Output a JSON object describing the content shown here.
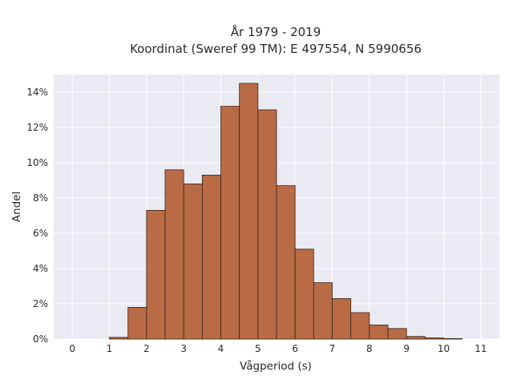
{
  "chart_data": {
    "type": "bar",
    "title": "År 1979 - 2019",
    "subtitle": "Koordinat (Sweref 99 TM): E 497554, N 5990656",
    "xlabel": "Vågperiod (s)",
    "ylabel": "Andel",
    "xlim": [
      -0.5,
      11.5
    ],
    "ylim": [
      0,
      15
    ],
    "x_ticks": [
      0,
      1,
      2,
      3,
      4,
      5,
      6,
      7,
      8,
      9,
      10,
      11
    ],
    "y_ticks": [
      0,
      2,
      4,
      6,
      8,
      10,
      12,
      14
    ],
    "y_tick_suffix": "%",
    "bin_width": 0.5,
    "bins": [
      {
        "start": 1.0,
        "value": 0.1
      },
      {
        "start": 1.5,
        "value": 1.8
      },
      {
        "start": 2.0,
        "value": 7.3
      },
      {
        "start": 2.5,
        "value": 9.6
      },
      {
        "start": 3.0,
        "value": 8.8
      },
      {
        "start": 3.5,
        "value": 9.3
      },
      {
        "start": 4.0,
        "value": 13.2
      },
      {
        "start": 4.5,
        "value": 14.5
      },
      {
        "start": 5.0,
        "value": 13.0
      },
      {
        "start": 5.5,
        "value": 8.7
      },
      {
        "start": 6.0,
        "value": 5.1
      },
      {
        "start": 6.5,
        "value": 3.2
      },
      {
        "start": 7.0,
        "value": 2.3
      },
      {
        "start": 7.5,
        "value": 1.5
      },
      {
        "start": 8.0,
        "value": 0.8
      },
      {
        "start": 8.5,
        "value": 0.6
      },
      {
        "start": 9.0,
        "value": 0.15
      },
      {
        "start": 9.5,
        "value": 0.07
      },
      {
        "start": 10.0,
        "value": 0.03
      }
    ],
    "grid": true,
    "bar_color": "#b86b45",
    "bar_edge_color": "#3a2418",
    "plot_background": "#eaeaf2",
    "grid_color": "#ffffff"
  }
}
